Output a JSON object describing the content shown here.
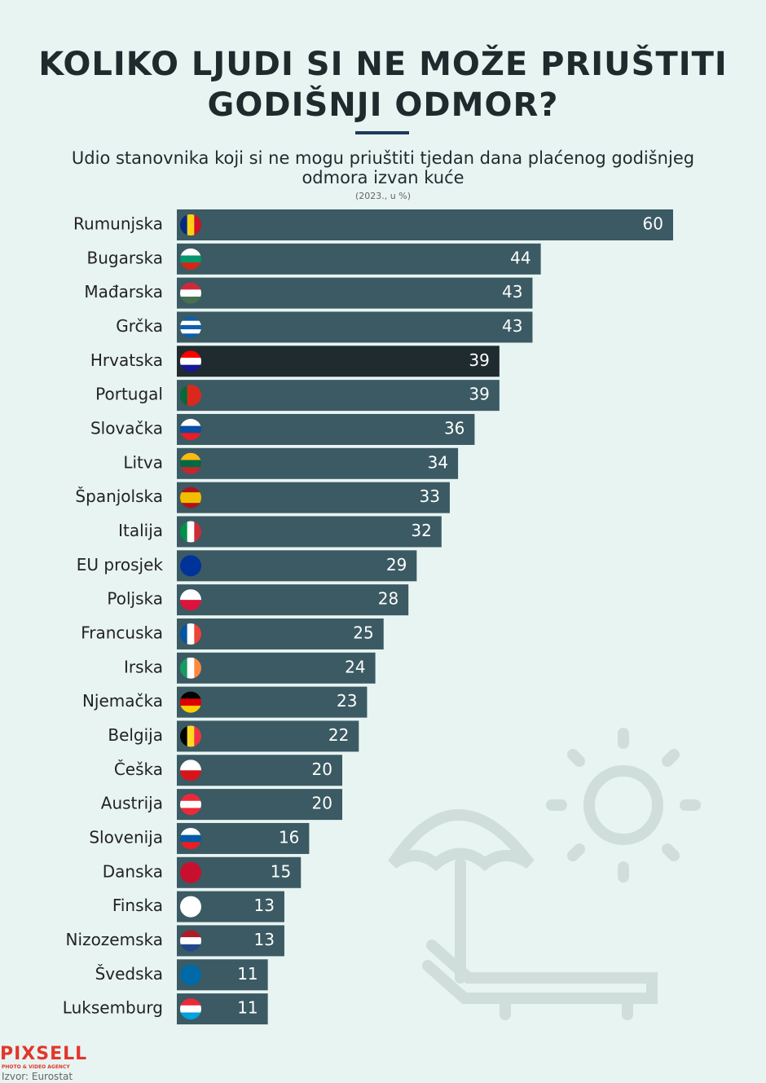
{
  "title": "KOLIKO LJUDI SI NE MOŽE PRIUŠTITI GODIŠNJI ODMOR?",
  "logo": "PIXSELL",
  "agency": "PHOTO & VIDEO AGENCY",
  "source": "Izvor: Eurostat",
  "chart_data": {
    "type": "bar",
    "orientation": "horizontal",
    "subtitle": "Udio stanovnika koji si ne mogu priuštiti tjedan dana plaćenog godišnjeg odmora izvan kuće",
    "note": "(2023., u %)",
    "categories": [
      "Rumunjska",
      "Bugarska",
      "Mađarska",
      "Grčka",
      "Hrvatska",
      "Portugal",
      "Slovačka",
      "Litva",
      "Španjolska",
      "Italija",
      "EU prosjek",
      "Poljska",
      "Francuska",
      "Irska",
      "Njemačka",
      "Belgija",
      "Češka",
      "Austrija",
      "Slovenija",
      "Danska",
      "Finska",
      "Nizozemska",
      "Švedska",
      "Luksemburg"
    ],
    "values": [
      60,
      44,
      43,
      43,
      39,
      39,
      36,
      34,
      33,
      32,
      29,
      28,
      25,
      24,
      23,
      22,
      20,
      20,
      16,
      15,
      13,
      13,
      11,
      11
    ],
    "colors": [
      "#3b5a63",
      "#3b5a63",
      "#3b5a63",
      "#3b5a63",
      "#1f2b2e",
      "#3b5a63",
      "#3b5a63",
      "#3b5a63",
      "#3b5a63",
      "#3b5a63",
      "#3b5a63",
      "#3b5a63",
      "#3b5a63",
      "#3b5a63",
      "#3b5a63",
      "#3b5a63",
      "#3b5a63",
      "#3b5a63",
      "#3b5a63",
      "#3b5a63",
      "#3b5a63",
      "#3b5a63",
      "#3b5a63",
      "#3b5a63"
    ]
  }
}
